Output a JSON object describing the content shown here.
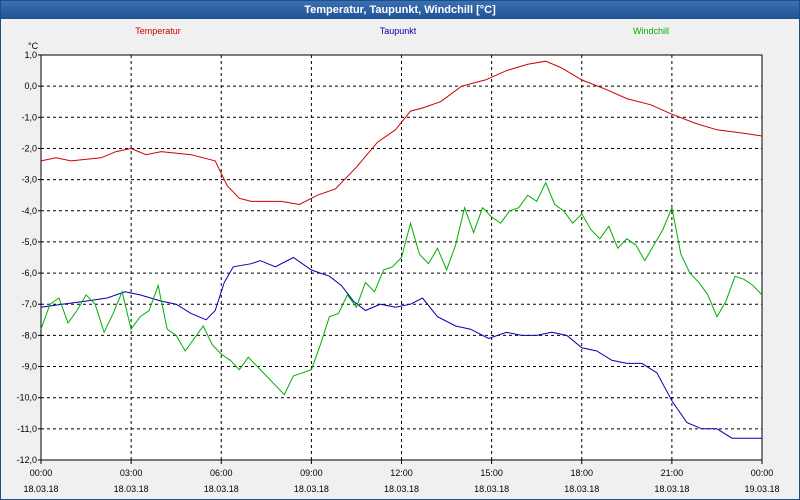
{
  "window": {
    "title": "Temperatur, Taupunkt, Windchill [°C]"
  },
  "colors": {
    "temperatur": "#cc0000",
    "taupunkt": "#0000b0",
    "windchill": "#00b000"
  },
  "chart_data": {
    "type": "line",
    "title": "Temperatur, Taupunkt, Windchill [°C]",
    "ylabel": "°C",
    "ylim": [
      -12.0,
      1.0
    ],
    "xlim_hours": [
      0,
      24
    ],
    "grid": true,
    "legend_position": "top",
    "y_ticks": [
      "1,0",
      "0,0",
      "-1,0",
      "-2,0",
      "-3,0",
      "-4,0",
      "-5,0",
      "-6,0",
      "-7,0",
      "-8,0",
      "-9,0",
      "-10,0",
      "-11,0",
      "-12,0"
    ],
    "x_ticks": [
      {
        "time": "00:00",
        "date": "18.03.18"
      },
      {
        "time": "03:00",
        "date": "18.03.18"
      },
      {
        "time": "06:00",
        "date": "18.03.18"
      },
      {
        "time": "09:00",
        "date": "18.03.18"
      },
      {
        "time": "12:00",
        "date": "18.03.18"
      },
      {
        "time": "15:00",
        "date": "18.03.18"
      },
      {
        "time": "18:00",
        "date": "18.03.18"
      },
      {
        "time": "21:00",
        "date": "18.03.18"
      },
      {
        "time": "00:00",
        "date": "19.03.18"
      }
    ],
    "series": [
      {
        "name": "Temperatur",
        "x": [
          0,
          0.5,
          1,
          2,
          2.5,
          3,
          3.5,
          4,
          5,
          5.8,
          6.2,
          6.6,
          7,
          8,
          8.6,
          9.2,
          9.8,
          10.5,
          11.2,
          11.8,
          12.3,
          12.7,
          13.3,
          14,
          14.8,
          15.5,
          16.2,
          16.8,
          17.3,
          18,
          18.8,
          19.5,
          20.3,
          21,
          21.8,
          22.5,
          23.3,
          24
        ],
        "values": [
          -2.4,
          -2.3,
          -2.4,
          -2.3,
          -2.1,
          -2.0,
          -2.2,
          -2.1,
          -2.2,
          -2.4,
          -3.2,
          -3.6,
          -3.7,
          -3.7,
          -3.8,
          -3.5,
          -3.3,
          -2.6,
          -1.8,
          -1.4,
          -0.8,
          -0.7,
          -0.5,
          0.0,
          0.2,
          0.5,
          0.7,
          0.8,
          0.6,
          0.2,
          -0.1,
          -0.4,
          -0.6,
          -0.9,
          -1.2,
          -1.4,
          -1.5,
          -1.6
        ]
      },
      {
        "name": "Taupunkt",
        "x": [
          0,
          0.7,
          1.5,
          2.2,
          2.8,
          3.3,
          4,
          4.5,
          5,
          5.5,
          5.8,
          6.1,
          6.4,
          7,
          7.3,
          7.8,
          8.4,
          9,
          9.6,
          10,
          10.4,
          10.8,
          11.3,
          11.8,
          12.3,
          12.7,
          13.2,
          13.8,
          14.3,
          14.9,
          15.5,
          16,
          16.5,
          17,
          17.5,
          18,
          18.5,
          19,
          19.5,
          20,
          20.5,
          21,
          21.5,
          22,
          22.5,
          23,
          23.5,
          24
        ],
        "values": [
          -7.1,
          -7.0,
          -6.9,
          -6.8,
          -6.6,
          -6.7,
          -6.9,
          -7.0,
          -7.3,
          -7.5,
          -7.2,
          -6.3,
          -5.8,
          -5.7,
          -5.6,
          -5.8,
          -5.5,
          -5.9,
          -6.1,
          -6.4,
          -6.9,
          -7.2,
          -7.0,
          -7.1,
          -7.0,
          -6.8,
          -7.4,
          -7.7,
          -7.8,
          -8.1,
          -7.9,
          -8.0,
          -8.0,
          -7.9,
          -8.0,
          -8.4,
          -8.5,
          -8.8,
          -8.9,
          -8.9,
          -9.2,
          -10.1,
          -10.8,
          -11.0,
          -11.0,
          -11.3,
          -11.3,
          -11.3
        ]
      },
      {
        "name": "Windchill",
        "x": [
          0,
          0.3,
          0.6,
          0.9,
          1.2,
          1.5,
          1.8,
          2.1,
          2.4,
          2.7,
          3.0,
          3.3,
          3.6,
          3.9,
          4.2,
          4.5,
          4.8,
          5.1,
          5.4,
          5.7,
          6.0,
          6.3,
          6.6,
          6.9,
          7.2,
          7.5,
          7.8,
          8.1,
          8.4,
          8.7,
          9.0,
          9.3,
          9.6,
          9.9,
          10.2,
          10.5,
          10.8,
          11.1,
          11.4,
          11.7,
          12.0,
          12.3,
          12.6,
          12.9,
          13.2,
          13.5,
          13.8,
          14.1,
          14.4,
          14.7,
          15.0,
          15.3,
          15.6,
          15.9,
          16.2,
          16.5,
          16.8,
          17.1,
          17.4,
          17.7,
          18.0,
          18.3,
          18.6,
          18.9,
          19.2,
          19.5,
          19.8,
          20.1,
          20.4,
          20.7,
          21.0,
          21.3,
          21.6,
          21.9,
          22.2,
          22.5,
          22.8,
          23.1,
          23.4,
          23.7,
          24.0
        ],
        "values": [
          -7.8,
          -7.0,
          -6.8,
          -7.6,
          -7.2,
          -6.7,
          -7.0,
          -7.9,
          -7.3,
          -6.6,
          -7.8,
          -7.4,
          -7.2,
          -6.4,
          -7.8,
          -8.0,
          -8.5,
          -8.1,
          -7.7,
          -8.3,
          -8.6,
          -8.8,
          -9.1,
          -8.7,
          -9.0,
          -9.3,
          -9.6,
          -9.9,
          -9.3,
          -9.2,
          -9.1,
          -8.3,
          -7.4,
          -7.3,
          -6.7,
          -7.1,
          -6.3,
          -6.6,
          -5.9,
          -5.8,
          -5.5,
          -4.4,
          -5.4,
          -5.7,
          -5.2,
          -5.9,
          -5.1,
          -3.9,
          -4.7,
          -3.9,
          -4.2,
          -4.4,
          -4.0,
          -3.9,
          -3.5,
          -3.7,
          -3.1,
          -3.8,
          -4.0,
          -4.4,
          -4.1,
          -4.6,
          -4.9,
          -4.5,
          -5.2,
          -4.9,
          -5.1,
          -5.6,
          -5.1,
          -4.6,
          -3.9,
          -5.4,
          -6.0,
          -6.3,
          -6.7,
          -7.4,
          -6.9,
          -6.1,
          -6.2,
          -6.4,
          -6.7
        ]
      }
    ]
  }
}
